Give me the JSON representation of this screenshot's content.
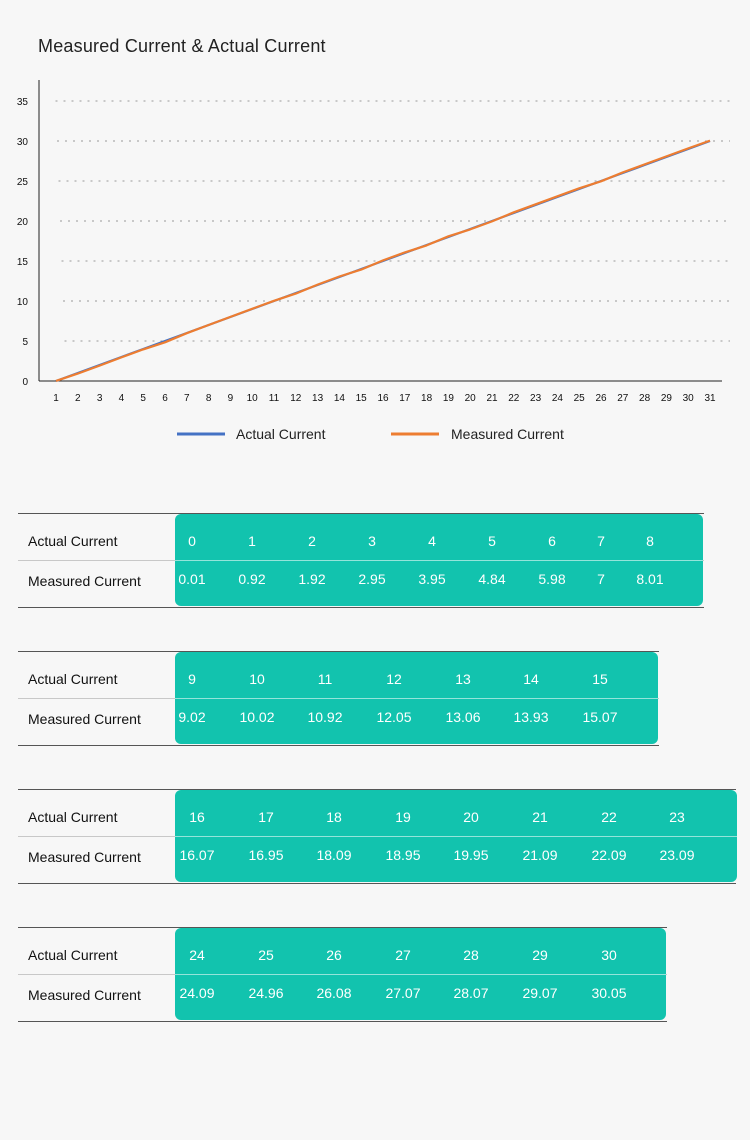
{
  "chart_data": {
    "type": "line",
    "title": "Measured Current & Actual Current",
    "x": [
      1,
      2,
      3,
      4,
      5,
      6,
      7,
      8,
      9,
      10,
      11,
      12,
      13,
      14,
      15,
      16,
      17,
      18,
      19,
      20,
      21,
      22,
      23,
      24,
      25,
      26,
      27,
      28,
      29,
      30,
      31
    ],
    "series": [
      {
        "name": "Actual Current",
        "color": "#4472c4",
        "values": [
          0,
          1,
          2,
          3,
          4,
          5,
          6,
          7,
          8,
          9,
          10,
          11,
          12,
          13,
          14,
          15,
          16,
          17,
          18,
          19,
          20,
          21,
          22,
          23,
          24,
          25,
          26,
          27,
          28,
          29,
          30
        ]
      },
      {
        "name": "Measured Current",
        "color": "#ed7d31",
        "values": [
          0.01,
          0.92,
          1.92,
          2.95,
          3.95,
          4.84,
          5.98,
          7,
          8.01,
          9.02,
          10.02,
          10.92,
          12.05,
          13.06,
          13.93,
          15.07,
          16.07,
          16.95,
          18.09,
          18.95,
          19.95,
          21.09,
          22.09,
          23.09,
          24.09,
          24.96,
          26.08,
          27.07,
          28.07,
          29.07,
          30.05
        ]
      }
    ],
    "ylim": [
      0,
      35
    ],
    "yticks": [
      0,
      5,
      10,
      15,
      20,
      25,
      30,
      35
    ],
    "xlabel": "",
    "ylabel": "",
    "grid": "horizontal-dotted",
    "legend": "bottom-center"
  },
  "tables": [
    {
      "row_labels": [
        "Actual Current",
        "Measured Current"
      ],
      "actual": [
        "0",
        "1",
        "2",
        "3",
        "4",
        "5",
        "6",
        "7",
        "8"
      ],
      "measured": [
        "0.01",
        "0.92",
        "1.92",
        "2.95",
        "3.95",
        "4.84",
        "5.98",
        "7",
        "8.01"
      ]
    },
    {
      "row_labels": [
        "Actual Current",
        "Measured Current"
      ],
      "actual": [
        "9",
        "10",
        "11",
        "12",
        "13",
        "14",
        "15"
      ],
      "measured": [
        "9.02",
        "10.02",
        "10.92",
        "12.05",
        "13.06",
        "13.93",
        "15.07"
      ]
    },
    {
      "row_labels": [
        "Actual Current",
        "Measured Current"
      ],
      "actual": [
        "16",
        "17",
        "18",
        "19",
        "20",
        "21",
        "22",
        "23"
      ],
      "measured": [
        "16.07",
        "16.95",
        "18.09",
        "18.95",
        "19.95",
        "21.09",
        "22.09",
        "23.09"
      ]
    },
    {
      "row_labels": [
        "Actual Current",
        "Measured Current"
      ],
      "actual": [
        "24",
        "25",
        "26",
        "27",
        "28",
        "29",
        "30"
      ],
      "measured": [
        "24.09",
        "24.96",
        "26.08",
        "27.07",
        "28.07",
        "29.07",
        "30.05"
      ]
    }
  ],
  "colors": {
    "teal": "#12c3ae"
  }
}
